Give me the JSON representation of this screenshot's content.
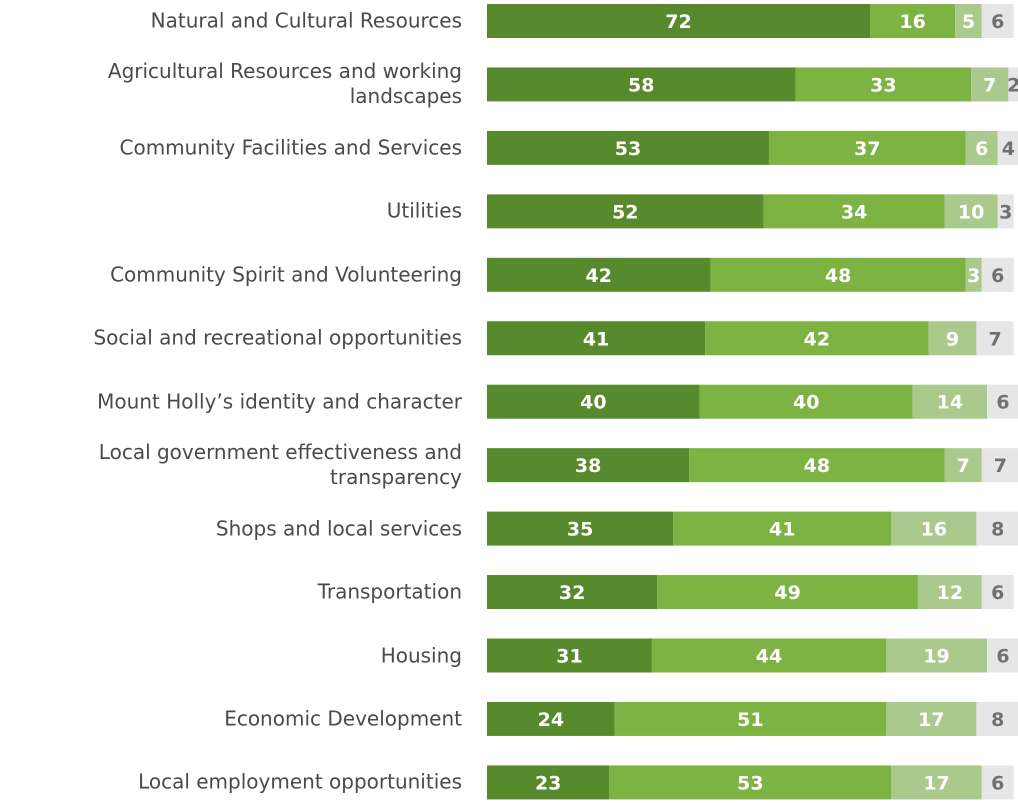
{
  "chart_data": {
    "type": "stacked-bar",
    "orientation": "horizontal",
    "categories": [
      "Natural and Cultural Resources",
      "Agricultural Resources and working\nlandscapes",
      "Community Facilities and Services",
      "Utilities",
      "Community Spirit and Volunteering",
      "Social and recreational opportunities",
      "Mount Holly’s identity and character",
      "Local government effectiveness and\ntransparency",
      "Shops and local services",
      "Transportation",
      "Housing",
      "Economic Development",
      "Local employment opportunities"
    ],
    "series": [
      {
        "color": "#578a2c",
        "label_color": "#ffffff",
        "values": [
          72,
          58,
          53,
          52,
          42,
          41,
          40,
          38,
          35,
          32,
          31,
          24,
          23
        ]
      },
      {
        "color": "#7cb342",
        "label_color": "#ffffff",
        "values": [
          16,
          33,
          37,
          34,
          48,
          42,
          40,
          48,
          41,
          49,
          44,
          51,
          53
        ]
      },
      {
        "color": "#a9c98d",
        "label_color": "#ffffff",
        "values": [
          5,
          7,
          6,
          10,
          3,
          9,
          14,
          7,
          16,
          12,
          19,
          17,
          17
        ]
      },
      {
        "color": "#e6e6e6",
        "label_color": "#707070",
        "values": [
          6,
          2,
          4,
          3,
          6,
          7,
          6,
          7,
          8,
          6,
          6,
          8,
          6
        ]
      }
    ]
  }
}
